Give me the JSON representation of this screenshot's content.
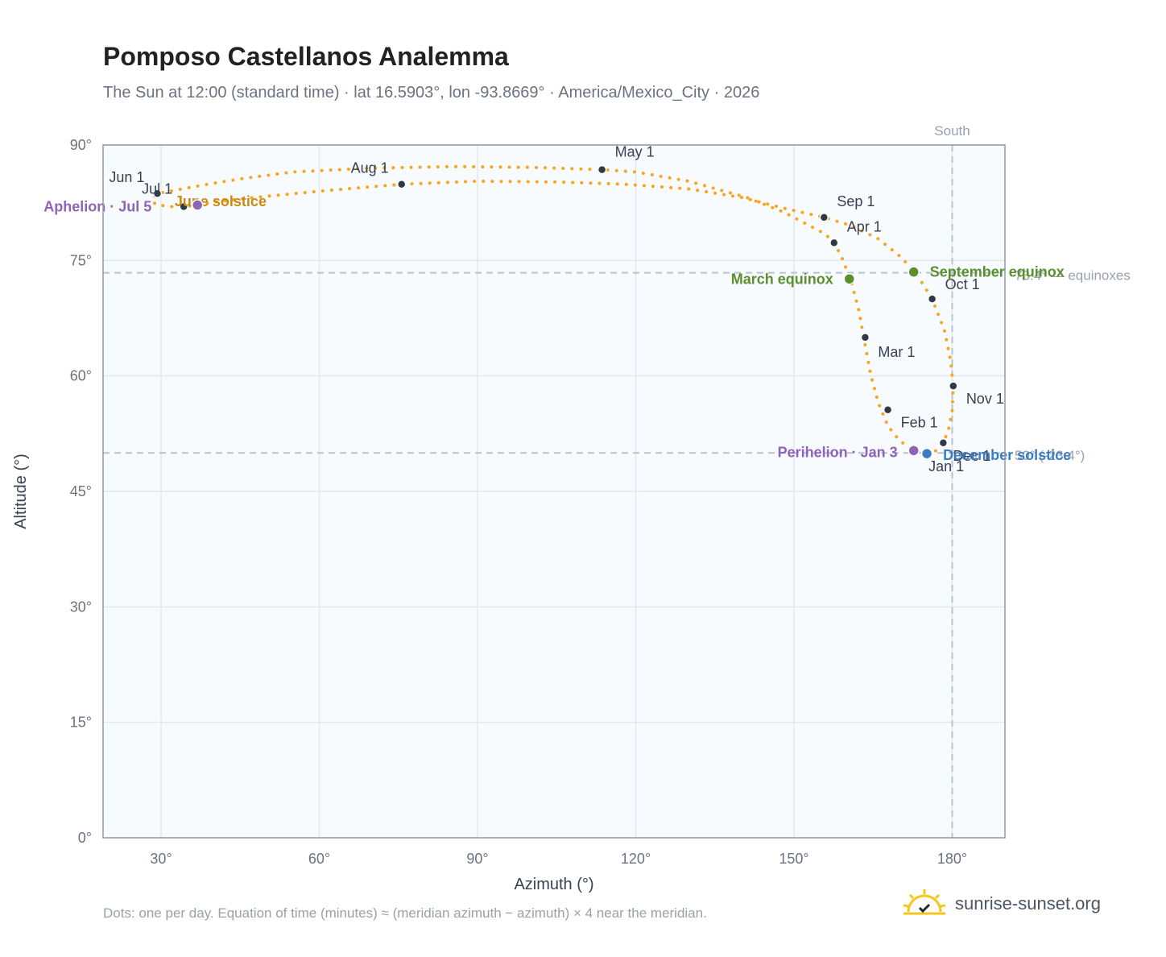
{
  "header": {
    "title": "Pomposo Castellanos Analemma",
    "subtitle": "The Sun at 12:00 (standard time) · lat 16.5903°, lon -93.8669° · America/Mexico_City · 2026"
  },
  "footer": {
    "note": "Dots: one per day. Equation of time (minutes) ≈ (meridian azimuth − azimuth) × 4 near the meridian.",
    "brand": "sunrise-sunset.org"
  },
  "colors": {
    "curve": "#f5a623",
    "month_marker": "#2f3a45",
    "equinox": "#5a8f2e",
    "june_solstice": "#c98a12",
    "december_solstice": "#3b7dc4",
    "apsis": "#8e63b8",
    "plot_bg": "#f8fbfe",
    "grid": "#e3e8ee",
    "ref_line": "#b9c2cf"
  },
  "chart_data": {
    "type": "scatter",
    "title": "Pomposo Castellanos Analemma",
    "xlabel": "Azimuth (°)",
    "ylabel": "Altitude (°)",
    "xlim": [
      19,
      190
    ],
    "ylim": [
      0,
      90
    ],
    "x_ticks": [
      {
        "value": 30,
        "label": "30°"
      },
      {
        "value": 60,
        "label": "60°"
      },
      {
        "value": 90,
        "label": "90°"
      },
      {
        "value": 120,
        "label": "120°"
      },
      {
        "value": 150,
        "label": "150°"
      },
      {
        "value": 180,
        "label": "180°"
      }
    ],
    "y_ticks": [
      {
        "value": 0,
        "label": "0°"
      },
      {
        "value": 15,
        "label": "15°"
      },
      {
        "value": 30,
        "label": "30°"
      },
      {
        "value": 45,
        "label": "45°"
      },
      {
        "value": 60,
        "label": "60°"
      },
      {
        "value": 75,
        "label": "75°"
      },
      {
        "value": 90,
        "label": "90°"
      }
    ],
    "grid": true,
    "meridian": {
      "azimuth": 180,
      "label": "South"
    },
    "reference_lines": [
      {
        "altitude": 73.4,
        "label": "73.4° — equinoxes"
      },
      {
        "altitude": 50.0,
        "label": "50° (-23.4°)"
      }
    ],
    "analemma_path": [
      [
        175.2,
        49.9
      ],
      [
        172.7,
        50.3
      ],
      [
        170.0,
        51.6
      ],
      [
        167.8,
        53.5
      ],
      [
        166.0,
        56.5
      ],
      [
        164.6,
        60.0
      ],
      [
        163.5,
        64.0
      ],
      [
        162.3,
        68.5
      ],
      [
        160.8,
        72.4
      ],
      [
        159.0,
        75.5
      ],
      [
        157.6,
        77.3
      ],
      [
        155.8,
        78.5
      ],
      [
        153.0,
        79.5
      ],
      [
        148.0,
        81.3
      ],
      [
        141.0,
        83.2
      ],
      [
        130.0,
        85.3
      ],
      [
        120.0,
        86.5
      ],
      [
        113.6,
        86.8
      ],
      [
        100.0,
        87.1
      ],
      [
        85.0,
        87.2
      ],
      [
        70.0,
        87.0
      ],
      [
        55.0,
        86.5
      ],
      [
        45.0,
        85.6
      ],
      [
        38.0,
        84.8
      ],
      [
        32.5,
        84.1
      ],
      [
        29.3,
        83.7
      ],
      [
        28.3,
        83.0
      ],
      [
        28.9,
        82.3
      ],
      [
        31.5,
        82.0
      ],
      [
        34.3,
        82.0
      ],
      [
        36.9,
        82.2
      ],
      [
        40.0,
        82.6
      ],
      [
        48.0,
        83.2
      ],
      [
        60.0,
        84.0
      ],
      [
        75.6,
        84.9
      ],
      [
        90.0,
        85.3
      ],
      [
        105.0,
        85.2
      ],
      [
        118.0,
        84.9
      ],
      [
        130.0,
        84.3
      ],
      [
        140.0,
        83.2
      ],
      [
        148.0,
        81.8
      ],
      [
        155.7,
        80.6
      ],
      [
        161.0,
        79.5
      ],
      [
        166.0,
        77.8
      ],
      [
        170.0,
        75.6
      ],
      [
        173.0,
        73.5
      ],
      [
        176.2,
        70.0
      ],
      [
        178.5,
        66.0
      ],
      [
        179.7,
        62.0
      ],
      [
        180.2,
        58.7
      ],
      [
        180.0,
        55.5
      ],
      [
        179.3,
        53.0
      ],
      [
        178.3,
        51.3
      ],
      [
        177.0,
        50.3
      ],
      [
        175.2,
        49.9
      ]
    ],
    "month_markers": [
      {
        "label": "Jan 1",
        "x": 175.2,
        "y": 49.9
      },
      {
        "label": "Feb 1",
        "x": 167.8,
        "y": 55.6
      },
      {
        "label": "Mar 1",
        "x": 163.5,
        "y": 65.0
      },
      {
        "label": "Apr 1",
        "x": 157.6,
        "y": 77.3
      },
      {
        "label": "May 1",
        "x": 113.6,
        "y": 86.8
      },
      {
        "label": "Jun 1",
        "x": 29.3,
        "y": 83.7
      },
      {
        "label": "Jul 1",
        "x": 34.3,
        "y": 82.0
      },
      {
        "label": "Aug 1",
        "x": 75.6,
        "y": 84.9
      },
      {
        "label": "Sep 1",
        "x": 155.7,
        "y": 80.6
      },
      {
        "label": "Oct 1",
        "x": 176.2,
        "y": 70.0
      },
      {
        "label": "Nov 1",
        "x": 180.2,
        "y": 58.7
      },
      {
        "label": "Dec 1",
        "x": 178.3,
        "y": 51.3
      }
    ],
    "events": [
      {
        "label": "March equinox",
        "x": 160.5,
        "y": 72.6,
        "color": "#5a8f2e"
      },
      {
        "label": "September equinox",
        "x": 172.7,
        "y": 73.5,
        "color": "#5a8f2e"
      },
      {
        "label": "June solstice",
        "x": 28.3,
        "y": 83.0,
        "color": "#c98a12"
      },
      {
        "label": "December solstice",
        "x": 175.2,
        "y": 49.9,
        "color": "#3b7dc4"
      },
      {
        "label": "Aphelion · Jul 5",
        "x": 36.9,
        "y": 82.2,
        "color": "#8e63b8"
      },
      {
        "label": "Perihelion · Jan 3",
        "x": 172.7,
        "y": 50.3,
        "color": "#8e63b8"
      }
    ]
  }
}
